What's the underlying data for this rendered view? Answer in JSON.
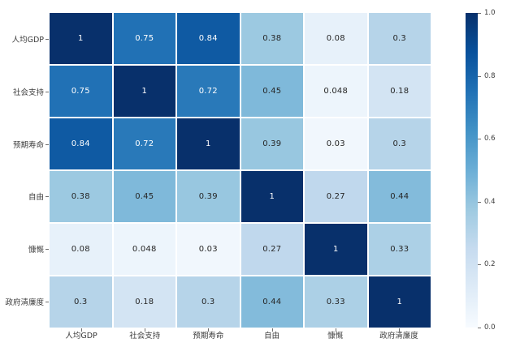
{
  "chart_data": {
    "type": "heatmap",
    "title": "",
    "xlabel": "",
    "ylabel": "",
    "categories": [
      "人均GDP",
      "社会支持",
      "预期寿命",
      "自由",
      "慷慨",
      "政府清廉度"
    ],
    "matrix": [
      [
        1,
        0.75,
        0.84,
        0.38,
        0.08,
        0.3
      ],
      [
        0.75,
        1,
        0.72,
        0.45,
        0.048,
        0.18
      ],
      [
        0.84,
        0.72,
        1,
        0.39,
        0.03,
        0.3
      ],
      [
        0.38,
        0.45,
        0.39,
        1,
        0.27,
        0.44
      ],
      [
        0.08,
        0.048,
        0.03,
        0.27,
        1,
        0.33
      ],
      [
        0.3,
        0.18,
        0.3,
        0.44,
        0.33,
        1
      ]
    ],
    "cell_labels": [
      [
        "1",
        "0.75",
        "0.84",
        "0.38",
        "0.08",
        "0.3"
      ],
      [
        "0.75",
        "1",
        "0.72",
        "0.45",
        "0.048",
        "0.18"
      ],
      [
        "0.84",
        "0.72",
        "1",
        "0.39",
        "0.03",
        "0.3"
      ],
      [
        "0.38",
        "0.45",
        "0.39",
        "1",
        "0.27",
        "0.44"
      ],
      [
        "0.08",
        "0.048",
        "0.03",
        "0.27",
        "1",
        "0.33"
      ],
      [
        "0.3",
        "0.18",
        "0.3",
        "0.44",
        "0.33",
        "1"
      ]
    ],
    "vmin": 0.0,
    "vmax": 1.0,
    "grid": false,
    "colormap": {
      "name": "Blues",
      "stops": [
        {
          "t": 0.0,
          "color": "#f7fbff"
        },
        {
          "t": 0.125,
          "color": "#deebf7"
        },
        {
          "t": 0.25,
          "color": "#c6dbef"
        },
        {
          "t": 0.375,
          "color": "#9ecae1"
        },
        {
          "t": 0.5,
          "color": "#6baed6"
        },
        {
          "t": 0.625,
          "color": "#4292c6"
        },
        {
          "t": 0.75,
          "color": "#2171b5"
        },
        {
          "t": 0.875,
          "color": "#08519c"
        },
        {
          "t": 1.0,
          "color": "#08306b"
        }
      ]
    },
    "colorbar": {
      "position": "right",
      "tick_labels": [
        "1.0",
        "0.8",
        "0.6",
        "0.4",
        "0.2",
        "0.0"
      ]
    },
    "annotation_text_colors": {
      "light": "#ffffff",
      "dark": "#262626"
    },
    "axis_label_color": "#3b3b3b",
    "background": "#ffffff"
  }
}
